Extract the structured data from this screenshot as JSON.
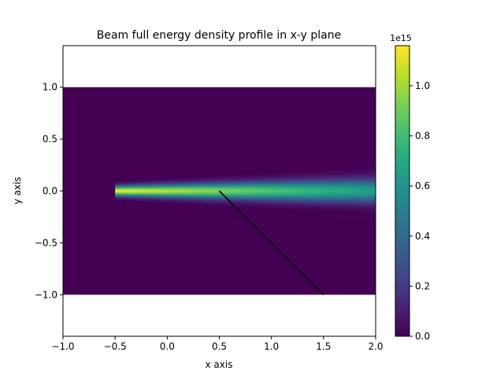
{
  "chart_data": {
    "type": "heatmap",
    "title": "Beam full energy density profile in x-y plane",
    "xlabel": "x axis",
    "ylabel": "y axis",
    "xlim": [
      -1.0,
      2.0
    ],
    "ylim": [
      -1.4,
      1.4
    ],
    "x_ticks": [
      -1.0,
      -0.5,
      0.0,
      0.5,
      1.0,
      1.5,
      2.0
    ],
    "x_tick_labels": [
      "−1.0",
      "−0.5",
      "0.0",
      "0.5",
      "1.0",
      "1.5",
      "2.0"
    ],
    "y_ticks": [
      -1.0,
      -0.5,
      0.0,
      0.5,
      1.0
    ],
    "y_tick_labels": [
      "−1.0",
      "−0.5",
      "0.0",
      "0.5",
      "1.0"
    ],
    "grid": false,
    "heatmap_extent": {
      "x": [
        -1.0,
        2.0
      ],
      "y": [
        -1.0,
        1.0
      ]
    },
    "background_value": 0,
    "beam": {
      "x_start": -0.5,
      "x_end": 2.0,
      "center_y": 0.0,
      "peak_value": 1150000000000000.0,
      "end_value": 650000000000000.0,
      "half_width_start": 0.05,
      "half_width_end": 0.12
    },
    "overlay_line": {
      "x": [
        0.5,
        1.5
      ],
      "y": [
        0.0,
        -1.0
      ],
      "color": "#000000"
    },
    "colorbar": {
      "colormap": "viridis",
      "min": 0,
      "max": 1160000000000000.0,
      "ticks": [
        0.0,
        0.2,
        0.4,
        0.6,
        0.8,
        1.0
      ],
      "tick_labels": [
        "0.0",
        "0.2",
        "0.4",
        "0.6",
        "0.8",
        "1.0"
      ],
      "scale_label": "1e15"
    }
  }
}
